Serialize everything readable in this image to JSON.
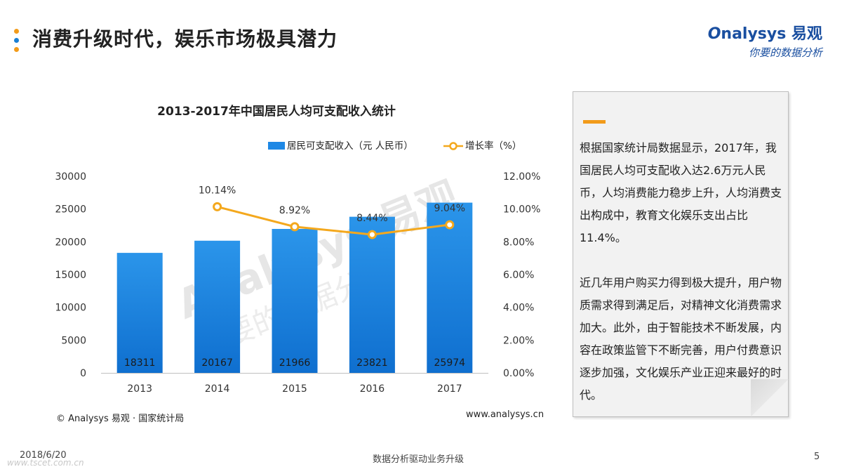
{
  "page": {
    "title": "消费升级时代，娱乐市场极具潜力",
    "dot_colors": [
      "#f29b1a",
      "#1a7fd4",
      "#f29b1a"
    ]
  },
  "logo": {
    "brand_o": "O",
    "brand_rest": "nalysys 易观",
    "slogan": "你要的数据分析"
  },
  "chart_data": {
    "type": "bar",
    "title": "2013-2017年中国居民人均可支配收入统计",
    "categories": [
      "2013",
      "2014",
      "2015",
      "2016",
      "2017"
    ],
    "series": [
      {
        "name": "居民可支配收入（元 人民币）",
        "kind": "bar",
        "axis": "left",
        "color": "#1e88e5",
        "values": [
          18311,
          20167,
          21966,
          23821,
          25974
        ],
        "labels": [
          "18311",
          "20167",
          "21966",
          "23821",
          "25974"
        ]
      },
      {
        "name": "增长率（%）",
        "kind": "line",
        "axis": "right",
        "color": "#f4a81d",
        "values": [
          null,
          10.14,
          8.92,
          8.44,
          9.04
        ],
        "labels": [
          "",
          "10.14%",
          "8.92%",
          "8.44%",
          "9.04%"
        ]
      }
    ],
    "left_axis": {
      "min": 0,
      "max": 30000,
      "ticks": [
        0,
        5000,
        10000,
        15000,
        20000,
        25000,
        30000
      ],
      "tick_labels": [
        "0",
        "5000",
        "10000",
        "15000",
        "20000",
        "25000",
        "30000"
      ]
    },
    "right_axis": {
      "min": 0,
      "max": 12,
      "ticks": [
        0,
        2,
        4,
        6,
        8,
        10,
        12
      ],
      "tick_labels": [
        "0.00%",
        "2.00%",
        "4.00%",
        "6.00%",
        "8.00%",
        "10.00%",
        "12.00%"
      ]
    },
    "legend_position": "top-right",
    "grid": false
  },
  "chart_watermark": {
    "main": "Analysys 易观",
    "sub": "你要的数据分析"
  },
  "source": "© Analysys 易观 · 国家统计局",
  "website": "www.analysys.cn",
  "note": {
    "accent_color": "#f29b1a",
    "paragraph1": "根据国家统计局数据显示，2017年，我国居民人均可支配收入达2.6万元人民币，人均消费能力稳步上升，人均消费支出构成中，教育文化娱乐支出占比11.4%。",
    "paragraph2": "近几年用户购买力得到极大提升，用户物质需求得到满足后，对精神文化消费需求加大。此外，由于智能技术不断发展，内容在政策监管下不断完善，用户付费意识逐步加强，文化娱乐产业正迎来最好的时代。"
  },
  "footer": {
    "date": "2018/6/20",
    "watermark": "www.tscet.com.cn",
    "center": "数据分析驱动业务升级",
    "page_number": "5"
  }
}
